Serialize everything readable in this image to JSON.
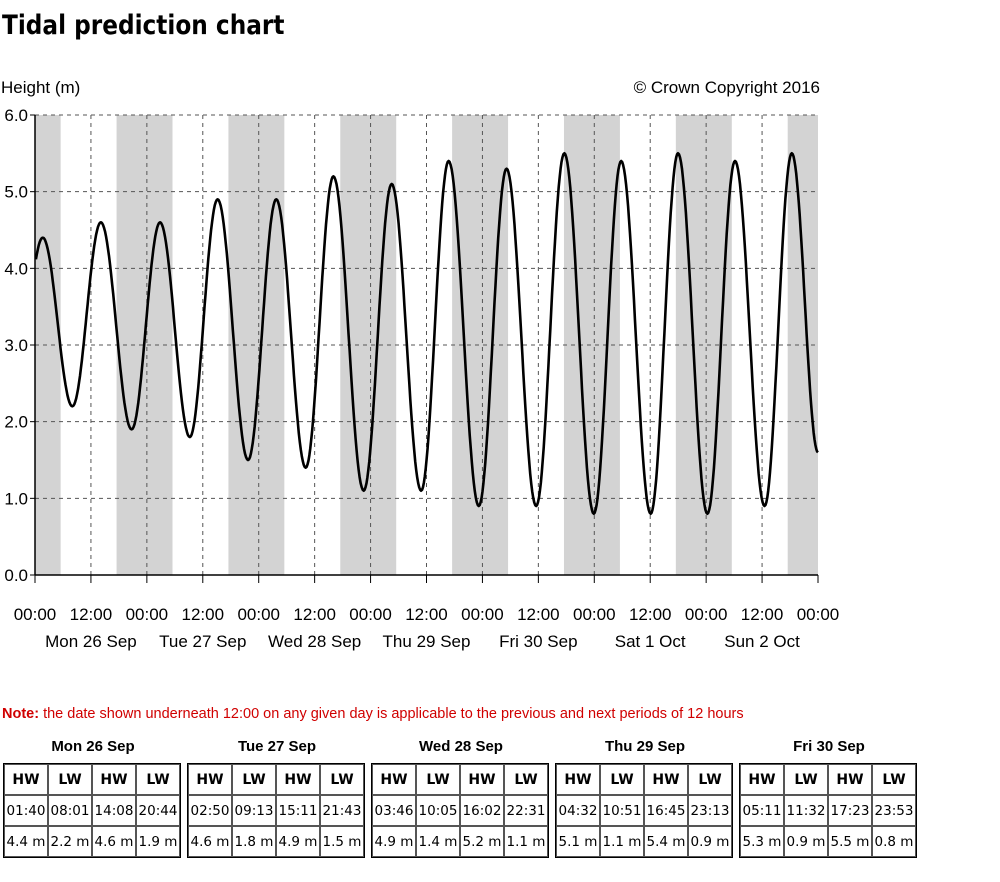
{
  "title": "Tidal prediction chart",
  "note": {
    "label": "Note:",
    "text": " the date shown underneath 12:00 on any given day is applicable to the previous and next periods of 12 hours"
  },
  "colors": {
    "night_band": "#d3d3d3",
    "curve": "#000000",
    "note": "#d00000"
  },
  "chart_data": {
    "type": "line",
    "ylabel": "Height (m)",
    "copyright": "© Crown Copyright 2016",
    "ylim": [
      0,
      6.0
    ],
    "yticks": [
      "0.0",
      "1.0",
      "2.0",
      "3.0",
      "4.0",
      "5.0",
      "6.0"
    ],
    "x_unit": "hours from Mon 26 Sep 00:00",
    "xlim": [
      0,
      168
    ],
    "xticks": [
      "00:00",
      "12:00",
      "00:00",
      "12:00",
      "00:00",
      "12:00",
      "00:00",
      "12:00",
      "00:00",
      "12:00",
      "00:00",
      "12:00",
      "00:00",
      "12:00",
      "00:00"
    ],
    "day_labels": [
      "Mon 26 Sep",
      "Tue 27 Sep",
      "Wed 28 Sep",
      "Thu 29 Sep",
      "Fri 30 Sep",
      "Sat 1 Oct",
      "Sun 2 Oct"
    ],
    "grid": true,
    "night_bands": [
      [
        0,
        5.5
      ],
      [
        17.5,
        29.5
      ],
      [
        41.5,
        53.5
      ],
      [
        65.5,
        77.5
      ],
      [
        89.5,
        101.5
      ],
      [
        113.5,
        125.5
      ],
      [
        137.5,
        149.5
      ],
      [
        161.5,
        168
      ]
    ],
    "series": [
      {
        "x": [
          1.67,
          8.02,
          14.13,
          20.73,
          26.83,
          33.22,
          39.18,
          45.72,
          51.77,
          58.08,
          64.03,
          70.52,
          76.53,
          82.85,
          88.75,
          95.22,
          101.18,
          107.53,
          113.58,
          119.9,
          125.77,
          132.1,
          137.97,
          144.27,
          150.2,
          156.53,
          162.38,
          168
        ],
        "y": [
          4.4,
          2.2,
          4.6,
          1.9,
          4.6,
          1.8,
          4.9,
          1.5,
          4.9,
          1.4,
          5.2,
          1.1,
          5.1,
          1.1,
          5.4,
          0.9,
          5.3,
          0.9,
          5.5,
          0.8,
          5.4,
          0.8,
          5.5,
          0.8,
          5.4,
          0.9,
          5.5,
          1.6
        ]
      }
    ]
  },
  "tide_tables": [
    {
      "day": "Mon 26 Sep",
      "headers": [
        "HW",
        "LW",
        "HW",
        "LW"
      ],
      "times": [
        "01:40",
        "08:01",
        "14:08",
        "20:44"
      ],
      "heights": [
        "4.4 m",
        "2.2 m",
        "4.6 m",
        "1.9 m"
      ]
    },
    {
      "day": "Tue 27 Sep",
      "headers": [
        "HW",
        "LW",
        "HW",
        "LW"
      ],
      "times": [
        "02:50",
        "09:13",
        "15:11",
        "21:43"
      ],
      "heights": [
        "4.6 m",
        "1.8 m",
        "4.9 m",
        "1.5 m"
      ]
    },
    {
      "day": "Wed 28 Sep",
      "headers": [
        "HW",
        "LW",
        "HW",
        "LW"
      ],
      "times": [
        "03:46",
        "10:05",
        "16:02",
        "22:31"
      ],
      "heights": [
        "4.9 m",
        "1.4 m",
        "5.2 m",
        "1.1 m"
      ]
    },
    {
      "day": "Thu 29 Sep",
      "headers": [
        "HW",
        "LW",
        "HW",
        "LW"
      ],
      "times": [
        "04:32",
        "10:51",
        "16:45",
        "23:13"
      ],
      "heights": [
        "5.1 m",
        "1.1 m",
        "5.4 m",
        "0.9 m"
      ]
    },
    {
      "day": "Fri 30 Sep",
      "headers": [
        "HW",
        "LW",
        "HW",
        "LW"
      ],
      "times": [
        "05:11",
        "11:32",
        "17:23",
        "23:53"
      ],
      "heights": [
        "5.3 m",
        "0.9 m",
        "5.5 m",
        "0.8 m"
      ]
    }
  ]
}
